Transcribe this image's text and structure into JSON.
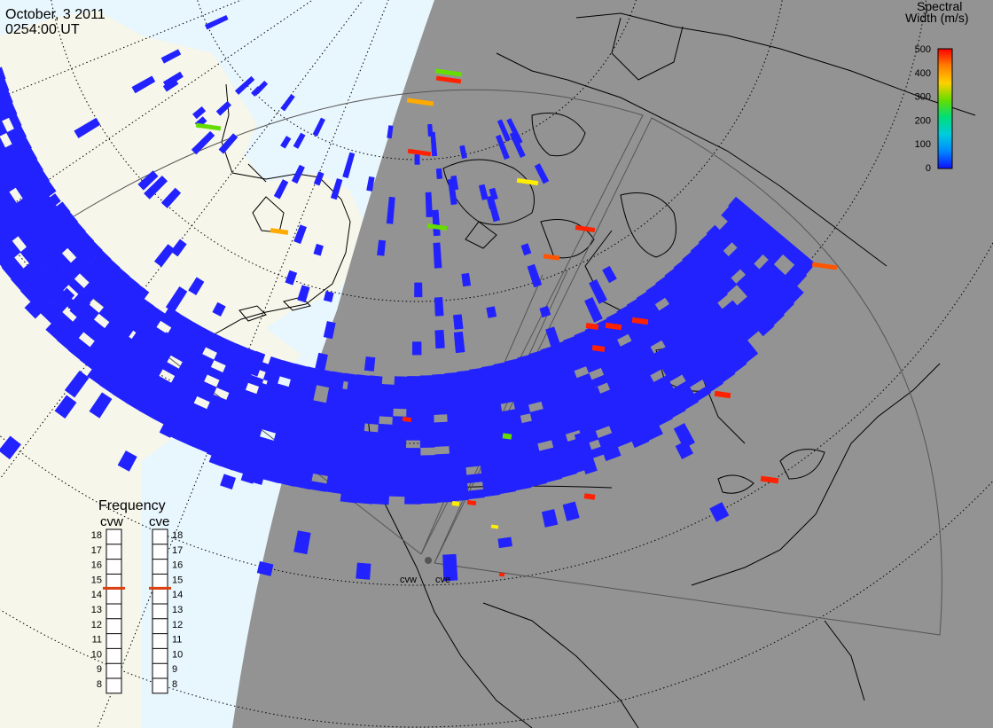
{
  "header": {
    "date": "October, 3 2011",
    "time": "0254:00 UT"
  },
  "legend": {
    "title_line1": "Spectral",
    "title_line2": "Width (m/s)",
    "ticks": [
      "500",
      "400",
      "300",
      "200",
      "100",
      "0"
    ],
    "colorscale": [
      "#ff0000",
      "#ff8000",
      "#ffd000",
      "#66dd00",
      "#00dd77",
      "#00ccdd",
      "#0088ff",
      "#1010ff"
    ]
  },
  "frequency_panel": {
    "title": "Frequency",
    "radars": [
      "cvw",
      "cve"
    ],
    "ticks": [
      "18",
      "17",
      "16",
      "15",
      "14",
      "13",
      "12",
      "11",
      "10",
      "9",
      "8"
    ],
    "marker_value": "15"
  },
  "radar_sites": {
    "labels": [
      "cvw",
      "cve"
    ]
  },
  "colors": {
    "ocean": "#e8f6fd",
    "land_day": "#f6f6ea",
    "night": "#939393",
    "echo": "#2222ff"
  }
}
